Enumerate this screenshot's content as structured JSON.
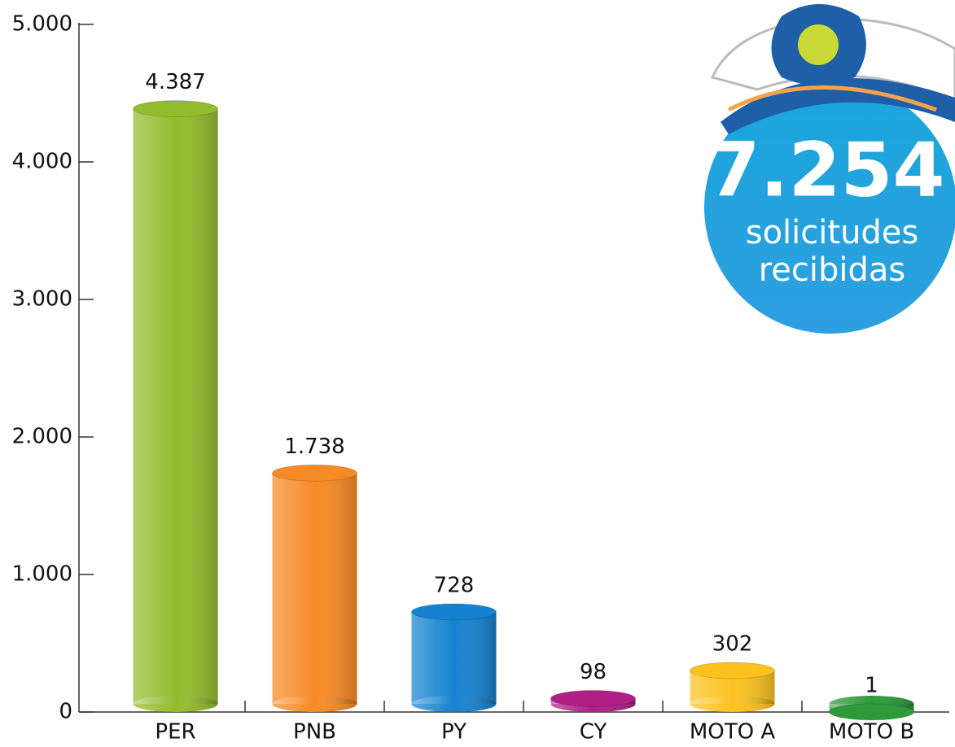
{
  "chart_data": {
    "type": "bar",
    "categories": [
      "PER",
      "PNB",
      "PY",
      "CY",
      "MOTO A",
      "MOTO B"
    ],
    "values": [
      4387,
      1738,
      728,
      98,
      302,
      1
    ],
    "value_labels": [
      "4.387",
      "1.738",
      "728",
      "98",
      "302",
      "1"
    ],
    "colors": [
      "#94bb2c",
      "#f68a25",
      "#1582cf",
      "#b01f86",
      "#fbc21f",
      "#2e9a3a"
    ],
    "ylim": [
      0,
      5000
    ],
    "yticks": [
      0,
      {
        "value": 1000,
        "label": "1.000"
      },
      {
        "value": 2000,
        "label": "2.000"
      },
      {
        "value": 3000,
        "label": "3.000"
      },
      {
        "value": 4000,
        "label": "4.000"
      },
      {
        "value": 5000,
        "label": "5.000"
      }
    ],
    "annotation": {
      "total": "7.254",
      "line1": "solicitudes",
      "line2": "recibidas"
    }
  }
}
